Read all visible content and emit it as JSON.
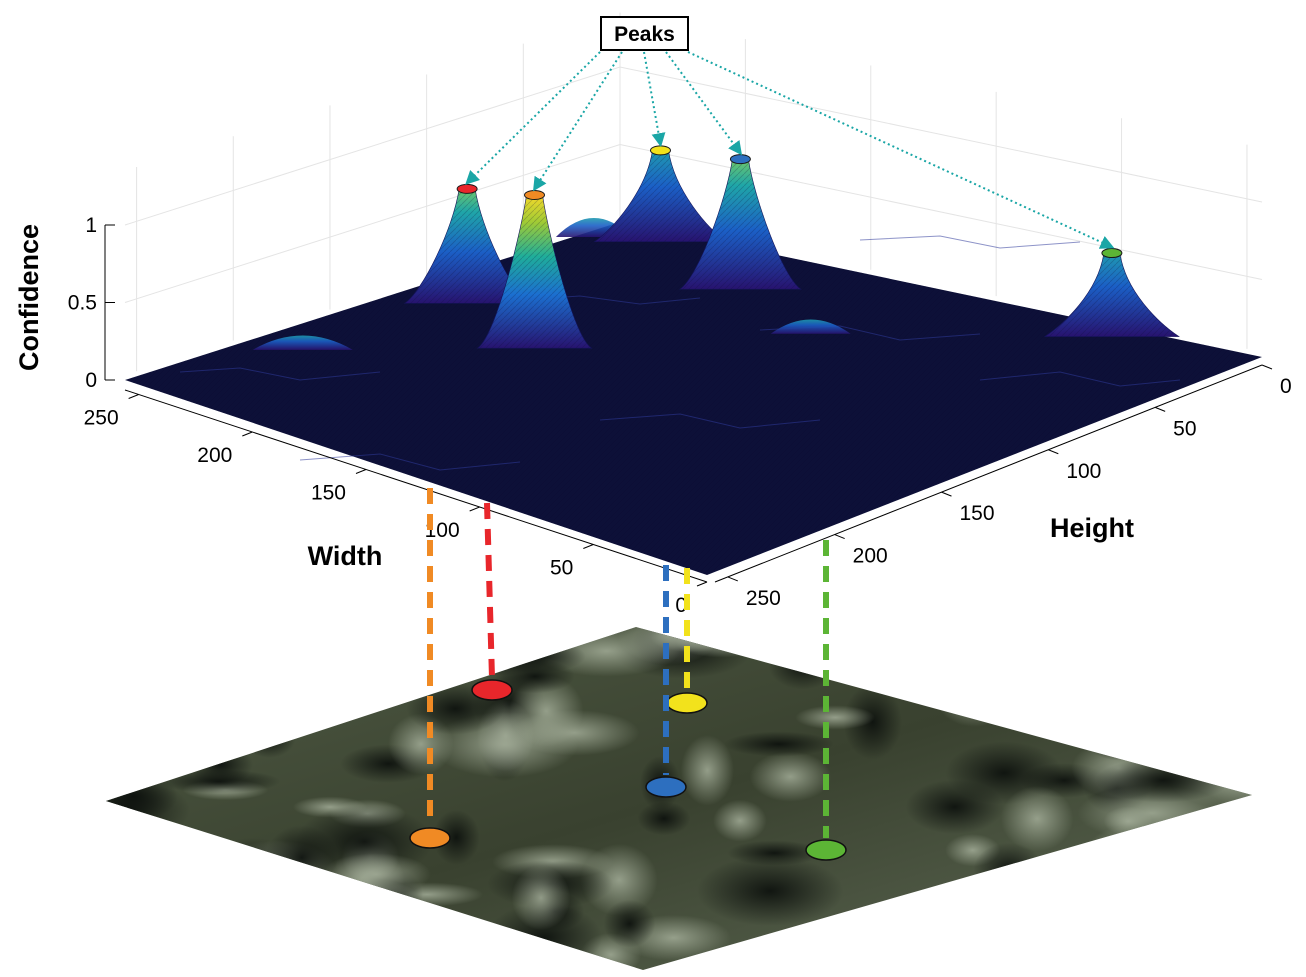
{
  "chart_data": {
    "type": "surface",
    "zlabel": "Confidence",
    "xlabel": "Width",
    "ylabel": "Height",
    "zlim": [
      0,
      1
    ],
    "xlim": [
      0,
      256
    ],
    "ylim": [
      0,
      256
    ],
    "z_ticks": [
      "0",
      "0.5",
      "1"
    ],
    "width_ticks": [
      "0",
      "50",
      "100",
      "150",
      "200",
      "250"
    ],
    "height_ticks": [
      "0",
      "50",
      "100",
      "150",
      "200",
      "250"
    ],
    "annotation": "Peaks",
    "grid": true,
    "colormap": "parula",
    "peaks": [
      {
        "color": "#e8262b",
        "width": 105,
        "height": 20,
        "confidence": 0.7
      },
      {
        "color": "#f08a24",
        "width": 135,
        "height": 70,
        "confidence": 0.95
      },
      {
        "color": "#f2e21c",
        "width": 5,
        "height": 20,
        "confidence": 0.55
      },
      {
        "color": "#2d6fbf",
        "width": 35,
        "height": 75,
        "confidence": 0.8
      },
      {
        "color": "#5cb535",
        "width": 5,
        "height": 200,
        "confidence": 0.5
      }
    ],
    "base_image": "aerial-tree-canopy"
  }
}
